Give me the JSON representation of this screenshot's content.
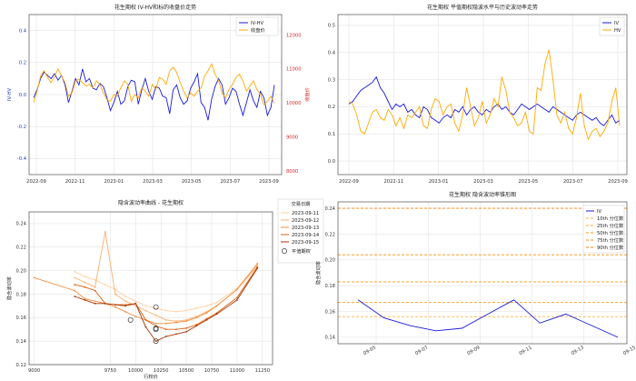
{
  "chart_data": [
    {
      "id": "c1",
      "type": "line",
      "title": "花生期权 IV-HV和标的收盘价走势",
      "ylabel_left": "IV-HV",
      "ylabel_right": "收盘价",
      "x_ticks": [
        "2022-09",
        "2022-11",
        "2023-01",
        "2023-03",
        "2023-05",
        "2023-07",
        "2023-09"
      ],
      "ylim_left": [
        -0.5,
        0.5
      ],
      "yticks_left": [
        -0.4,
        -0.2,
        0.0,
        0.2,
        0.4
      ],
      "ylim_right": [
        7900,
        12600
      ],
      "yticks_right": [
        8000,
        9000,
        10000,
        11000,
        12000
      ],
      "legend": "top-right",
      "grid": true,
      "colors": {
        "left": "#0000cc",
        "right": "#ffaa00",
        "left_axis": "#1f3fc8",
        "right_axis": "#d62728"
      },
      "series": [
        {
          "name": "IV-HV",
          "axis": "left",
          "color": "#1a1adc",
          "values": [
            -0.02,
            0.03,
            0.1,
            0.14,
            0.12,
            0.1,
            0.13,
            0.09,
            0.12,
            0.06,
            -0.05,
            0.02,
            0.1,
            0.06,
            0.16,
            0.08,
            0.1,
            0.04,
            0.03,
            0.07,
            0.05,
            -0.02,
            -0.1,
            -0.05,
            0.02,
            -0.06,
            -0.04,
            0.05,
            0.09,
            0.08,
            -0.06,
            0.03,
            0.1,
            0.02,
            -0.03,
            0.05,
            0.04,
            -0.01,
            -0.02,
            -0.12,
            0.03,
            0.06,
            -0.02,
            -0.06,
            -0.04,
            0.04,
            0.08,
            0.13,
            -0.05,
            -0.08,
            -0.16,
            -0.03,
            0.05,
            0.1,
            0.06,
            -0.06,
            -0.02,
            0.04,
            0.02,
            -0.06,
            -0.13,
            -0.05,
            0.03,
            -0.04,
            -0.08,
            0.02,
            -0.02,
            -0.13,
            -0.08,
            0.06
          ]
        },
        {
          "name": "收盘价",
          "axis": "right",
          "color": "#ffaa00",
          "values": [
            10020,
            10350,
            10800,
            10950,
            10750,
            10600,
            10780,
            11000,
            10800,
            10600,
            10200,
            10300,
            10650,
            10700,
            10600,
            10500,
            10550,
            10450,
            10650,
            10550,
            10300,
            10100,
            10050,
            10250,
            10200,
            10450,
            10650,
            10550,
            10050,
            10250,
            10150,
            10450,
            10350,
            10200,
            10550,
            10400,
            10750,
            10700,
            10550,
            10950,
            11050,
            10900,
            10600,
            10350,
            10150,
            10300,
            10200,
            10350,
            10450,
            10800,
            10950,
            11150,
            10850,
            10650,
            10300,
            10150,
            10400,
            10550,
            10750,
            10850,
            10650,
            10350,
            10500,
            10650,
            10400,
            10250,
            9950,
            10050,
            10200,
            10000
          ]
        }
      ]
    },
    {
      "id": "c2",
      "type": "line",
      "title": "花生期权 平值期权隐波水平与历史波动率走势",
      "x_ticks": [
        "2022-09",
        "2022-11",
        "2023-01",
        "2023-03",
        "2023-05",
        "2023-07",
        "2023-09"
      ],
      "ylim": [
        -0.05,
        0.54
      ],
      "yticks": [
        0.0,
        0.1,
        0.2,
        0.3,
        0.4,
        0.5
      ],
      "legend": "top-right",
      "grid": true,
      "series": [
        {
          "name": "IV",
          "color": "#1a1adc",
          "values": [
            0.21,
            0.22,
            0.24,
            0.26,
            0.27,
            0.28,
            0.29,
            0.31,
            0.27,
            0.25,
            0.22,
            0.19,
            0.21,
            0.2,
            0.21,
            0.18,
            0.19,
            0.17,
            0.16,
            0.2,
            0.19,
            0.16,
            0.15,
            0.14,
            0.16,
            0.17,
            0.16,
            0.19,
            0.18,
            0.2,
            0.17,
            0.19,
            0.2,
            0.18,
            0.17,
            0.19,
            0.18,
            0.2,
            0.21,
            0.19,
            0.2,
            0.18,
            0.17,
            0.19,
            0.21,
            0.2,
            0.19,
            0.2,
            0.21,
            0.2,
            0.19,
            0.18,
            0.2,
            0.19,
            0.18,
            0.17,
            0.16,
            0.15,
            0.17,
            0.18,
            0.17,
            0.16,
            0.15,
            0.16,
            0.14,
            0.13,
            0.15,
            0.17,
            0.14,
            0.15
          ]
        },
        {
          "name": "HV",
          "color": "#ffaa00",
          "values": [
            0.22,
            0.21,
            0.17,
            0.11,
            0.1,
            0.14,
            0.18,
            0.19,
            0.16,
            0.15,
            0.19,
            0.17,
            0.13,
            0.16,
            0.12,
            0.17,
            0.16,
            0.18,
            0.2,
            0.13,
            0.12,
            0.19,
            0.23,
            0.22,
            0.17,
            0.2,
            0.21,
            0.14,
            0.11,
            0.17,
            0.27,
            0.2,
            0.13,
            0.16,
            0.22,
            0.14,
            0.17,
            0.23,
            0.2,
            0.31,
            0.26,
            0.18,
            0.16,
            0.13,
            0.14,
            0.18,
            0.11,
            0.1,
            0.27,
            0.26,
            0.36,
            0.41,
            0.3,
            0.17,
            0.14,
            0.18,
            0.12,
            0.1,
            0.16,
            0.25,
            0.13,
            0.08,
            0.11,
            0.12,
            0.09,
            0.11,
            0.14,
            0.22,
            0.27,
            0.13
          ]
        }
      ]
    },
    {
      "id": "c3",
      "type": "line",
      "title": "隐含波动率曲线 - 花生期权",
      "xlabel": "行权价",
      "ylabel": "隐含波动率",
      "xlim": [
        9000,
        11300
      ],
      "xticks": [
        9000,
        9750,
        10000,
        10250,
        10500,
        10750,
        11000,
        11250
      ],
      "ylim": [
        0.12,
        0.25
      ],
      "yticks": [
        0.12,
        0.14,
        0.16,
        0.18,
        0.2,
        0.22,
        0.24
      ],
      "legend_title": "交易日期",
      "legend": "top-right",
      "grid": true,
      "series": [
        {
          "name": "2023-09-11",
          "color": "#fdd0a2",
          "x": [
            9400,
            9500,
            9600,
            9700,
            9800,
            9900,
            10000,
            10100,
            10200,
            10300,
            10400,
            10500,
            10600,
            10700,
            10800,
            11000,
            11200
          ],
          "values": [
            0.199,
            0.195,
            0.192,
            0.188,
            0.184,
            0.178,
            0.174,
            0.17,
            0.168,
            0.166,
            0.165,
            0.166,
            0.168,
            0.17,
            0.173,
            0.185,
            0.205
          ]
        },
        {
          "name": "2023-09-12",
          "color": "#fdae6b",
          "x": [
            9400,
            9500,
            9600,
            9700,
            9800,
            9900,
            10000,
            10100,
            10200,
            10300,
            10400,
            10500,
            10600,
            10700,
            10800,
            11000,
            11200
          ],
          "values": [
            0.194,
            0.19,
            0.186,
            0.233,
            0.18,
            0.174,
            0.17,
            0.166,
            0.162,
            0.158,
            0.157,
            0.158,
            0.161,
            0.165,
            0.17,
            0.184,
            0.204
          ]
        },
        {
          "name": "2023-09-13",
          "color": "#f28e3f",
          "x": [
            9000,
            9400,
            9500,
            9600,
            9700,
            9800,
            9900,
            10000,
            10100,
            10200,
            10300,
            10400,
            10500,
            10600,
            10700,
            10800,
            11000,
            11200
          ],
          "values": [
            0.194,
            0.183,
            0.176,
            0.174,
            0.172,
            0.169,
            0.165,
            0.161,
            0.158,
            0.155,
            0.155,
            0.156,
            0.157,
            0.16,
            0.164,
            0.17,
            0.184,
            0.206
          ]
        },
        {
          "name": "2023-09-14",
          "color": "#d95f0e",
          "x": [
            9400,
            9500,
            9600,
            9700,
            9800,
            9900,
            10000,
            10100,
            10200,
            10300,
            10400,
            10500,
            10600,
            10700,
            10800,
            11000,
            11200
          ],
          "values": [
            0.188,
            0.186,
            0.183,
            0.172,
            0.171,
            0.171,
            0.172,
            0.158,
            0.153,
            0.15,
            0.15,
            0.151,
            0.154,
            0.159,
            0.164,
            0.177,
            0.203
          ]
        },
        {
          "name": "2023-09-15",
          "color": "#a63603",
          "x": [
            9400,
            9500,
            9600,
            9700,
            9800,
            9900,
            10000,
            10100,
            10200,
            10300,
            10400,
            10500,
            10600,
            10700,
            10800,
            11000,
            11200
          ],
          "values": [
            0.178,
            0.175,
            0.172,
            0.172,
            0.171,
            0.17,
            0.172,
            0.152,
            0.14,
            0.144,
            0.146,
            0.148,
            0.153,
            0.158,
            0.163,
            0.175,
            0.202
          ]
        }
      ],
      "atm_marker": {
        "name": "平值期权",
        "points": [
          [
            9950,
            0.158
          ],
          [
            10200,
            0.169
          ],
          [
            10200,
            0.151
          ],
          [
            10200,
            0.15
          ],
          [
            10200,
            0.14
          ]
        ]
      }
    },
    {
      "id": "c4",
      "type": "line",
      "title": "花生期权 隐含波动率锥形图",
      "ylabel": "隐含波动率",
      "x_ticks": [
        "09-05",
        "09-07",
        "09-09",
        "09-11",
        "09-13",
        "09-15"
      ],
      "ylim": [
        0.135,
        0.245
      ],
      "yticks": [
        0.14,
        0.16,
        0.18,
        0.2,
        0.22,
        0.24
      ],
      "legend": "top-right",
      "grid": true,
      "series": [
        {
          "name": "IV",
          "color": "#1a1adc",
          "x": [
            0,
            1,
            2,
            3,
            4,
            5,
            6,
            7,
            8,
            9,
            10
          ],
          "values": [
            0.169,
            0.155,
            0.149,
            0.145,
            0.147,
            0.158,
            0.169,
            0.151,
            0.158,
            0.149,
            0.14
          ]
        }
      ],
      "percentiles": [
        {
          "name": "10th 分位数",
          "value": 0.156,
          "color": "#ffb347"
        },
        {
          "name": "25th 分位数",
          "value": 0.167,
          "color": "#ffa62b"
        },
        {
          "name": "50th 分位数",
          "value": 0.183,
          "color": "#ff9900"
        },
        {
          "name": "75th 分位数",
          "value": 0.204,
          "color": "#ff8c00"
        },
        {
          "name": "90th 分位数",
          "value": 0.24,
          "color": "#ff7f00"
        }
      ]
    }
  ]
}
